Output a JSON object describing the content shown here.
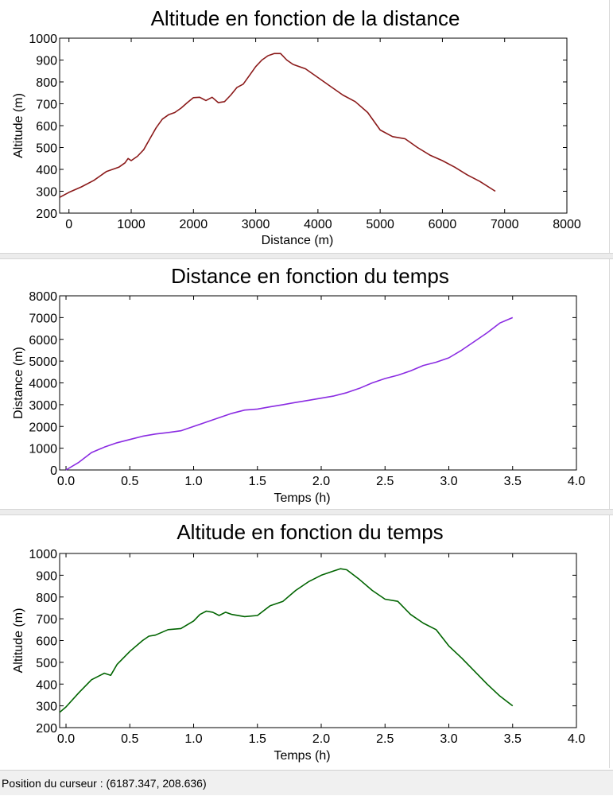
{
  "chart_data": [
    {
      "type": "line",
      "title": "Altitude en fonction de la distance",
      "xlabel": "Distance (m)",
      "ylabel": "Altitude (m)",
      "xlim": [
        -150,
        8000
      ],
      "ylim": [
        200,
        1000
      ],
      "xticks": [
        0,
        1000,
        2000,
        3000,
        4000,
        5000,
        6000,
        7000,
        8000
      ],
      "yticks": [
        200,
        300,
        400,
        500,
        600,
        700,
        800,
        900,
        1000
      ],
      "color": "#8b1a1a",
      "series": [
        {
          "x": [
            -150,
            0,
            200,
            400,
            600,
            800,
            900,
            950,
            1000,
            1100,
            1200,
            1300,
            1400,
            1500,
            1600,
            1700,
            1800,
            1900,
            2000,
            2100,
            2200,
            2300,
            2400,
            2500,
            2600,
            2700,
            2800,
            2900,
            3000,
            3100,
            3200,
            3300,
            3400,
            3500,
            3600,
            3800,
            4000,
            4200,
            4400,
            4600,
            4800,
            5000,
            5200,
            5400,
            5600,
            5800,
            6000,
            6200,
            6400,
            6600,
            6850
          ],
          "y": [
            272,
            295,
            320,
            350,
            390,
            410,
            430,
            450,
            440,
            460,
            490,
            540,
            590,
            630,
            650,
            660,
            680,
            705,
            728,
            730,
            715,
            730,
            705,
            710,
            740,
            775,
            790,
            830,
            870,
            900,
            920,
            930,
            930,
            900,
            880,
            860,
            820,
            780,
            740,
            710,
            660,
            580,
            550,
            540,
            500,
            465,
            440,
            410,
            375,
            345,
            300
          ]
        }
      ]
    },
    {
      "type": "line",
      "title": "Distance en fonction du temps",
      "xlabel": "Temps (h)",
      "ylabel": "Distance (m)",
      "xlim": [
        -0.05,
        4.0
      ],
      "ylim": [
        0,
        8000
      ],
      "xticks": [
        "0.0",
        "0.5",
        "1.0",
        "1.5",
        "2.0",
        "2.5",
        "3.0",
        "3.5",
        "4.0"
      ],
      "yticks": [
        0,
        1000,
        2000,
        3000,
        4000,
        5000,
        6000,
        7000,
        8000
      ],
      "color": "#8a2be2",
      "series": [
        {
          "x": [
            0,
            0.1,
            0.2,
            0.3,
            0.4,
            0.5,
            0.6,
            0.7,
            0.8,
            0.9,
            1.0,
            1.1,
            1.2,
            1.3,
            1.4,
            1.5,
            1.6,
            1.7,
            1.8,
            1.9,
            2.0,
            2.1,
            2.2,
            2.3,
            2.4,
            2.5,
            2.6,
            2.7,
            2.8,
            2.9,
            3.0,
            3.1,
            3.2,
            3.3,
            3.4,
            3.5
          ],
          "y": [
            0,
            350,
            800,
            1050,
            1250,
            1400,
            1550,
            1650,
            1720,
            1800,
            2000,
            2200,
            2400,
            2600,
            2750,
            2800,
            2900,
            3000,
            3100,
            3200,
            3300,
            3400,
            3550,
            3750,
            4000,
            4200,
            4350,
            4550,
            4800,
            4950,
            5150,
            5500,
            5900,
            6300,
            6750,
            7000
          ]
        }
      ]
    },
    {
      "type": "line",
      "title": "Altitude en fonction du temps",
      "xlabel": "Temps (h)",
      "ylabel": "Altitude (m)",
      "xlim": [
        -0.05,
        4.0
      ],
      "ylim": [
        200,
        1000
      ],
      "xticks": [
        "0.0",
        "0.5",
        "1.0",
        "1.5",
        "2.0",
        "2.5",
        "3.0",
        "3.5",
        "4.0"
      ],
      "yticks": [
        200,
        300,
        400,
        500,
        600,
        700,
        800,
        900,
        1000
      ],
      "color": "#006400",
      "series": [
        {
          "x": [
            -0.05,
            0.0,
            0.1,
            0.2,
            0.3,
            0.35,
            0.4,
            0.5,
            0.6,
            0.65,
            0.7,
            0.8,
            0.9,
            1.0,
            1.05,
            1.1,
            1.15,
            1.2,
            1.25,
            1.3,
            1.4,
            1.5,
            1.6,
            1.7,
            1.8,
            1.9,
            2.0,
            2.1,
            2.15,
            2.2,
            2.3,
            2.4,
            2.5,
            2.6,
            2.7,
            2.8,
            2.9,
            3.0,
            3.1,
            3.2,
            3.3,
            3.4,
            3.5
          ],
          "y": [
            270,
            295,
            360,
            420,
            450,
            440,
            490,
            550,
            600,
            620,
            625,
            650,
            655,
            690,
            720,
            735,
            730,
            715,
            730,
            720,
            710,
            715,
            760,
            780,
            830,
            870,
            900,
            920,
            930,
            925,
            880,
            830,
            790,
            780,
            720,
            680,
            650,
            575,
            520,
            460,
            400,
            345,
            300
          ]
        }
      ]
    }
  ],
  "status": {
    "label": "Position du curseur : ",
    "value": "(6187.347, 208.636)"
  }
}
